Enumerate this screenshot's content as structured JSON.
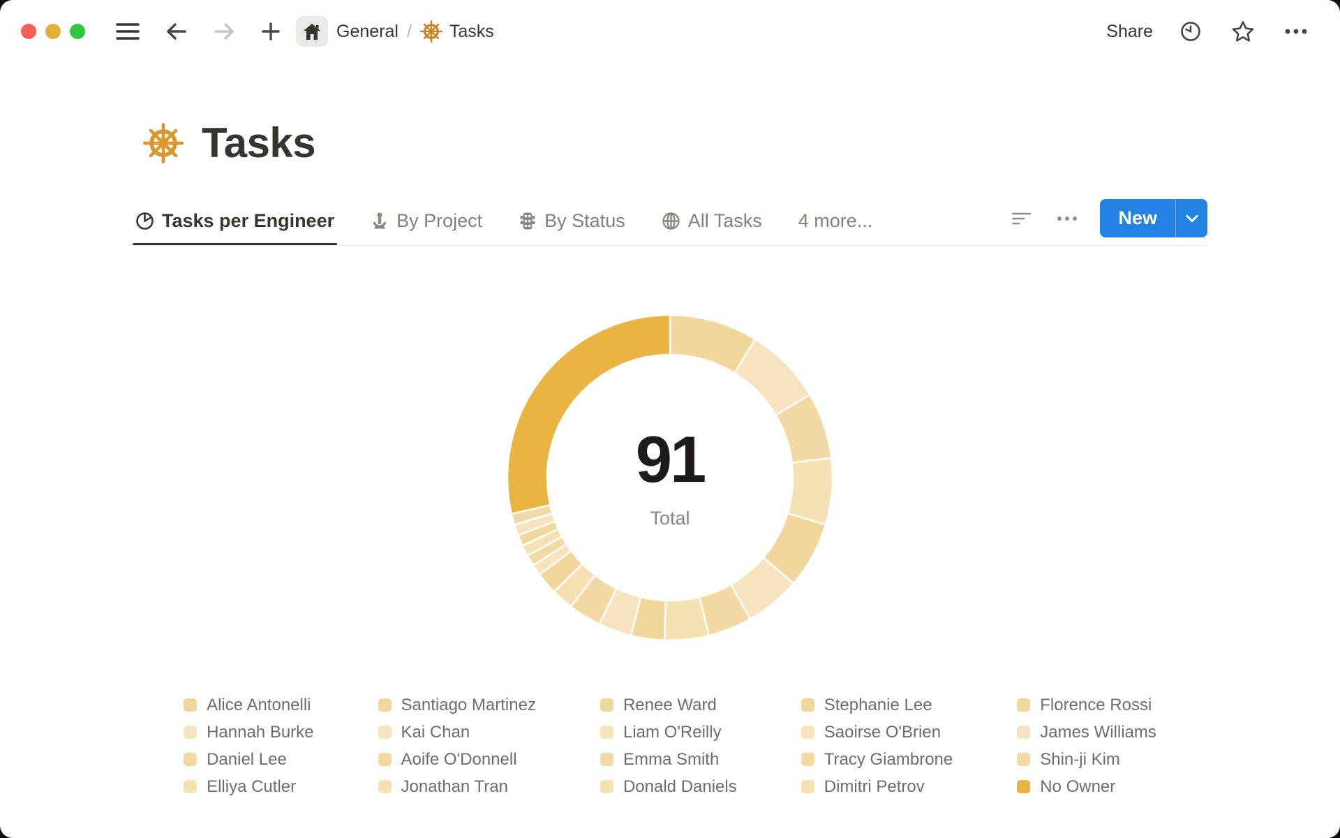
{
  "titlebar": {
    "breadcrumb": {
      "root": "General",
      "separator": "/",
      "page": "Tasks"
    },
    "share_label": "Share"
  },
  "page": {
    "title": "Tasks",
    "icon": "ship-wheel-icon"
  },
  "tabs": {
    "items": [
      {
        "label": "Tasks per Engineer",
        "icon": "pie-chart-icon",
        "active": true
      },
      {
        "label": "By Project",
        "icon": "anchor-icon",
        "active": false
      },
      {
        "label": "By Status",
        "icon": "traffic-light-icon",
        "active": false
      },
      {
        "label": "All Tasks",
        "icon": "globe-icon",
        "active": false
      },
      {
        "label": "4 more...",
        "icon": "none",
        "active": false
      }
    ],
    "controls": {
      "new_button_label": "New"
    }
  },
  "chart_data": {
    "type": "pie",
    "subtype": "donut",
    "title": "Tasks per Engineer",
    "center_value": "91",
    "center_label": "Total",
    "total": 91,
    "legend_position": "bottom",
    "legend_columns": 5,
    "start_angle": "12 o'clock, clockwise",
    "series": [
      {
        "name": "Alice Antonelli",
        "value": 8,
        "color": "#F2D79C"
      },
      {
        "name": "Hannah Burke",
        "value": 7,
        "color": "#F7E4BE"
      },
      {
        "name": "Daniel Lee",
        "value": 6,
        "color": "#F3DAA4"
      },
      {
        "name": "Elliya Cutler",
        "value": 6,
        "color": "#F6E1B3"
      },
      {
        "name": "Santiago Martinez",
        "value": 6,
        "color": "#F2D79C"
      },
      {
        "name": "Kai Chan",
        "value": 5,
        "color": "#F7E4BE"
      },
      {
        "name": "Aoife O'Donnell",
        "value": 4,
        "color": "#F3DAA4"
      },
      {
        "name": "Jonathan Tran",
        "value": 4,
        "color": "#F6E1B3"
      },
      {
        "name": "Renee Ward",
        "value": 3,
        "color": "#F2D79C"
      },
      {
        "name": "Liam O'Reilly",
        "value": 3,
        "color": "#F7E4BE"
      },
      {
        "name": "Emma Smith",
        "value": 3,
        "color": "#F3DAA4"
      },
      {
        "name": "Donald Daniels",
        "value": 2,
        "color": "#F6E1B3"
      },
      {
        "name": "Stephanie Lee",
        "value": 2,
        "color": "#F2D79C"
      },
      {
        "name": "Saoirse O'Brien",
        "value": 1,
        "color": "#F7E4BE"
      },
      {
        "name": "Tracy Giambrone",
        "value": 1,
        "color": "#F3DAA4"
      },
      {
        "name": "Dimitri Petrov",
        "value": 1,
        "color": "#F6E1B3"
      },
      {
        "name": "Florence Rossi",
        "value": 1,
        "color": "#F2D79C"
      },
      {
        "name": "James Williams",
        "value": 1,
        "color": "#F7E4BE"
      },
      {
        "name": "Shin-ji Kim",
        "value": 1,
        "color": "#F3DAA4"
      },
      {
        "name": "No Owner",
        "value": 26,
        "color": "#E9B441"
      }
    ]
  },
  "colors": {
    "accent_blue": "#2383E2",
    "no_owner_gold": "#E9B441",
    "page_icon_gold": "#D6982F",
    "traffic_red": "#F55F57",
    "traffic_yellow": "#E2AF3B",
    "traffic_green": "#2EC840"
  }
}
